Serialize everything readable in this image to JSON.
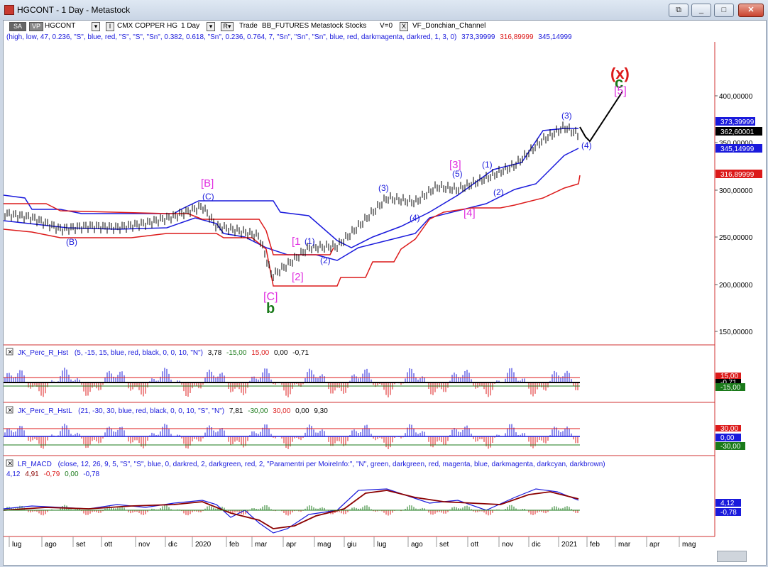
{
  "window": {
    "title": "HGCONT - 1 Day - Metastock",
    "buttons": [
      "⧉",
      "_",
      "□",
      "✕"
    ]
  },
  "toolbar": {
    "sa": "SA",
    "vp": "VP",
    "symbol": "HGCONT",
    "name_box": "I",
    "name": "CMX COPPER HG",
    "period": "1 Day",
    "r_box": "R",
    "trade": "Trade",
    "data_label": "BB_FUTURES Metastock Stocks",
    "v": "V=0",
    "x": "X",
    "indicator": "VF_Donchian_Channel"
  },
  "price_params": "(high, low, 47, 0.236, \"S\", blue, red, \"S\", \"S\", \"Sn\", 0.382, 0.618, \"Sn\", 0.236, 0.764, 7, \"Sn\", \"Sn\", \"Sn\", blue, red, darkmagenta, darkred, 1, 3, 0)",
  "price_values": {
    "v1": "373,39999",
    "v2": "316,89999",
    "v3": "345,14999"
  },
  "price_axis": [
    "400,00000",
    "350,00000",
    "300,00000",
    "250,00000",
    "200,00000",
    "150,00000"
  ],
  "price_tags": {
    "t1": "373,39999",
    "t2": "362,60001",
    "t3": "345,14999",
    "t4": "316,89999"
  },
  "wave_labels": {
    "x": "(x)",
    "c_big": "c",
    "five_bracket": "[5]",
    "three_paren": "(3)",
    "four_paren": "(4)",
    "three_bracket": "[3]",
    "five_paren": "(5)",
    "one_paren_r": "(1)",
    "two_paren_r": "(2)",
    "four_bracket": "[4]",
    "three_paren_l": "(3)",
    "four_paren_l": "(4)",
    "B_bracket": "[B]",
    "C_paren": "(C)",
    "B_paren": "(B)",
    "one_bracket": "[1",
    "one_paren": "(1)",
    "two_paren": "(2)",
    "two_bracket": "[2]",
    "C_bracket": "[C]",
    "b_big": "b"
  },
  "panel1": {
    "name": "JK_Perc_R_Hst",
    "params": "(5, -15, 15, blue, red, black, 0, 0, 10, \"N\")",
    "v1": "3,78",
    "v2": "-15,00",
    "v3": "15,00",
    "v4": "0,00",
    "v5": "-0,71",
    "tags": [
      "15,00",
      "-0,71",
      "-15,00"
    ]
  },
  "panel2": {
    "name": "JK_Perc_R_HstL",
    "params": "(21, -30, 30, blue, red, black, 0, 0, 10, \"S\", \"N\")",
    "v1": "7,81",
    "v2": "-30,00",
    "v3": "30,00",
    "v4": "0,00",
    "v5": "9,30",
    "tags": [
      "30,00",
      "0,00",
      "-30,00"
    ]
  },
  "panel3": {
    "name": "LR_MACD",
    "params": "(close, 12, 26, 9, 5, \"S\", \"S\", blue, 0, darkred, 2, darkgreen, red, 2, \"Paramentri per MoireInfo:\", \"N\", green, darkgreen, red, magenta, blue, darkmagenta, darkcyan, darkbrown)",
    "v1": "4,12",
    "v2": "4,91",
    "v3": "-0,79",
    "v4": "0,00",
    "v5": "-0,78",
    "tags": [
      "4,12",
      "-0,78"
    ]
  },
  "time_axis": [
    "lug",
    "ago",
    "set",
    "ott",
    "nov",
    "dic",
    "2020",
    "feb",
    "mar",
    "apr",
    "mag",
    "giu",
    "lug",
    "ago",
    "set",
    "ott",
    "nov",
    "dic",
    "2021",
    "feb",
    "mar",
    "apr",
    "mag"
  ],
  "colors": {
    "upper": "#1a1adc",
    "lower": "#dc1a1a",
    "magenta": "#e030e0",
    "green": "#1a7a1a",
    "darkred": "#8b0000"
  }
}
